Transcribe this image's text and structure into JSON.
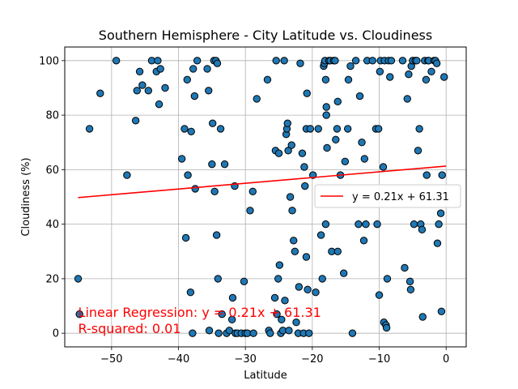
{
  "chart_data": {
    "type": "scatter",
    "title": "Southern Hemisphere - City Latitude vs. Cloudiness",
    "xlabel": "Latitude",
    "ylabel": "Cloudiness (%)",
    "xlim": [
      -57,
      3
    ],
    "ylim": [
      -5,
      105
    ],
    "xticks": [
      -50,
      -40,
      -30,
      -20,
      -10,
      0
    ],
    "yticks": [
      0,
      20,
      40,
      60,
      80,
      100
    ],
    "grid": true,
    "legend_placement": "center-right",
    "legend": [
      {
        "label": "y = 0.21x + 61.31",
        "color": "#ff0000",
        "kind": "line"
      }
    ],
    "regression": {
      "slope": 0.21,
      "intercept": 61.31,
      "x_start": -55,
      "x_end": 0,
      "color": "#ff0000"
    },
    "annotations": [
      {
        "text": "Linear Regression: y = 0.21x + 61.31",
        "x": -55,
        "y": 6,
        "color": "#ff0000"
      },
      {
        "text": "R-squared: 0.01",
        "x": -55,
        "y": 0,
        "color": "#ff0000"
      }
    ],
    "marker_color": "#1f77b4",
    "marker_edge": "#000000",
    "points": [
      [
        -55,
        20
      ],
      [
        -54.8,
        7
      ],
      [
        -53.3,
        75
      ],
      [
        -51.7,
        88
      ],
      [
        -49.3,
        100
      ],
      [
        -47.7,
        58
      ],
      [
        -46.4,
        78
      ],
      [
        -46.2,
        89
      ],
      [
        -45.8,
        96
      ],
      [
        -45.4,
        91
      ],
      [
        -44.5,
        89
      ],
      [
        -44,
        100
      ],
      [
        -43.3,
        96
      ],
      [
        -43.1,
        100
      ],
      [
        -42.9,
        84
      ],
      [
        -42.7,
        97
      ],
      [
        -42,
        90
      ],
      [
        -39.5,
        64
      ],
      [
        -39.1,
        75
      ],
      [
        -38.9,
        35
      ],
      [
        -38.7,
        93
      ],
      [
        -38.6,
        58
      ],
      [
        -38.2,
        15
      ],
      [
        -38.1,
        74
      ],
      [
        -37.9,
        0
      ],
      [
        -37.8,
        97
      ],
      [
        -37.6,
        87
      ],
      [
        -37.5,
        53
      ],
      [
        -37.2,
        100
      ],
      [
        -35.7,
        97
      ],
      [
        -35.5,
        89
      ],
      [
        -35.4,
        1
      ],
      [
        -35,
        62
      ],
      [
        -34.9,
        77
      ],
      [
        -34.7,
        100
      ],
      [
        -34.6,
        52
      ],
      [
        -34.4,
        100
      ],
      [
        -34.3,
        36
      ],
      [
        -34.2,
        99
      ],
      [
        -34.1,
        20
      ],
      [
        -34,
        0
      ],
      [
        -33.7,
        75
      ],
      [
        -33.5,
        7
      ],
      [
        -33.1,
        62
      ],
      [
        -32.8,
        0
      ],
      [
        -32.4,
        1
      ],
      [
        -32,
        5
      ],
      [
        -31.9,
        13
      ],
      [
        -31.6,
        54
      ],
      [
        -31.5,
        0
      ],
      [
        -31.2,
        0
      ],
      [
        -30.6,
        0
      ],
      [
        -30.2,
        19
      ],
      [
        -30,
        0
      ],
      [
        -29.7,
        0
      ],
      [
        -29.3,
        45
      ],
      [
        -28.9,
        52
      ],
      [
        -28.8,
        0
      ],
      [
        -28.3,
        86
      ],
      [
        -26.7,
        93
      ],
      [
        -26.5,
        1
      ],
      [
        -26.3,
        0
      ],
      [
        -25.6,
        13
      ],
      [
        -25.5,
        67
      ],
      [
        -25.4,
        100
      ],
      [
        -25.3,
        7
      ],
      [
        -25.1,
        20
      ],
      [
        -25,
        66
      ],
      [
        -24.9,
        25
      ],
      [
        -24.7,
        0
      ],
      [
        -24.6,
        5
      ],
      [
        -24.4,
        1
      ],
      [
        -24.2,
        100
      ],
      [
        -24.1,
        12
      ],
      [
        -23.9,
        73
      ],
      [
        -23.8,
        75
      ],
      [
        -23.7,
        77
      ],
      [
        -23.6,
        67
      ],
      [
        -23.5,
        1
      ],
      [
        -23.3,
        50
      ],
      [
        -23.1,
        69
      ],
      [
        -23,
        45
      ],
      [
        -22.8,
        34
      ],
      [
        -22.6,
        30
      ],
      [
        -22.4,
        4
      ],
      [
        -22.1,
        0
      ],
      [
        -22,
        17
      ],
      [
        -21.8,
        99
      ],
      [
        -21.5,
        66
      ],
      [
        -21.3,
        0
      ],
      [
        -21.2,
        61
      ],
      [
        -21.1,
        54
      ],
      [
        -20.9,
        75
      ],
      [
        -20.9,
        28
      ],
      [
        -20.8,
        88
      ],
      [
        -20.7,
        16
      ],
      [
        -20.5,
        0
      ],
      [
        -20.3,
        75
      ],
      [
        -19.9,
        58
      ],
      [
        -19.5,
        15
      ],
      [
        -19.1,
        75
      ],
      [
        -18.7,
        36
      ],
      [
        -18.5,
        20
      ],
      [
        -18.3,
        98
      ],
      [
        -18.2,
        99
      ],
      [
        -18.1,
        100
      ],
      [
        -18,
        40
      ],
      [
        -18,
        93
      ],
      [
        -17.9,
        80
      ],
      [
        -17.9,
        83
      ],
      [
        -17.8,
        68
      ],
      [
        -17.5,
        100
      ],
      [
        -17.3,
        100
      ],
      [
        -17.1,
        30
      ],
      [
        -16.8,
        100
      ],
      [
        -16.6,
        100
      ],
      [
        -16.5,
        71
      ],
      [
        -16.3,
        75
      ],
      [
        -16.2,
        85
      ],
      [
        -16.2,
        30
      ],
      [
        -15.8,
        58
      ],
      [
        -15.3,
        22
      ],
      [
        -15.1,
        63
      ],
      [
        -14.7,
        75
      ],
      [
        -14.6,
        93
      ],
      [
        -14.3,
        98
      ],
      [
        -14,
        0
      ],
      [
        -13.5,
        100
      ],
      [
        -13.1,
        40
      ],
      [
        -12.9,
        87
      ],
      [
        -12.6,
        70
      ],
      [
        -12.3,
        34
      ],
      [
        -12.2,
        64
      ],
      [
        -12,
        40
      ],
      [
        -11.8,
        100
      ],
      [
        -11,
        100
      ],
      [
        -10.5,
        75
      ],
      [
        -10.3,
        40
      ],
      [
        -10.1,
        75
      ],
      [
        -10,
        14
      ],
      [
        -9.9,
        96
      ],
      [
        -9.8,
        100
      ],
      [
        -9.4,
        61
      ],
      [
        -9.3,
        4
      ],
      [
        -9.2,
        100
      ],
      [
        -9,
        3
      ],
      [
        -8.9,
        2
      ],
      [
        -8.8,
        20
      ],
      [
        -8.6,
        100
      ],
      [
        -8.4,
        94
      ],
      [
        -8.2,
        100
      ],
      [
        -6.5,
        100
      ],
      [
        -6.2,
        24
      ],
      [
        -5.8,
        86
      ],
      [
        -5.6,
        95
      ],
      [
        -5.4,
        19
      ],
      [
        -5.3,
        16
      ],
      [
        -5.2,
        98
      ],
      [
        -5,
        100
      ],
      [
        -4.8,
        40
      ],
      [
        -4.6,
        100
      ],
      [
        -4.4,
        100
      ],
      [
        -4.2,
        67
      ],
      [
        -4,
        75
      ],
      [
        -3.8,
        40
      ],
      [
        -3.6,
        38
      ],
      [
        -3.5,
        6
      ],
      [
        -3.2,
        100
      ],
      [
        -3,
        93
      ],
      [
        -2.9,
        58
      ],
      [
        -2.7,
        100
      ],
      [
        -2.6,
        100
      ],
      [
        -2.2,
        96
      ],
      [
        -1.8,
        100
      ],
      [
        -1.6,
        100
      ],
      [
        -1.4,
        99
      ],
      [
        -1.3,
        33
      ],
      [
        -1.1,
        40
      ],
      [
        -0.8,
        44
      ],
      [
        -0.7,
        8
      ],
      [
        -0.6,
        58
      ],
      [
        -0.3,
        94
      ]
    ]
  }
}
